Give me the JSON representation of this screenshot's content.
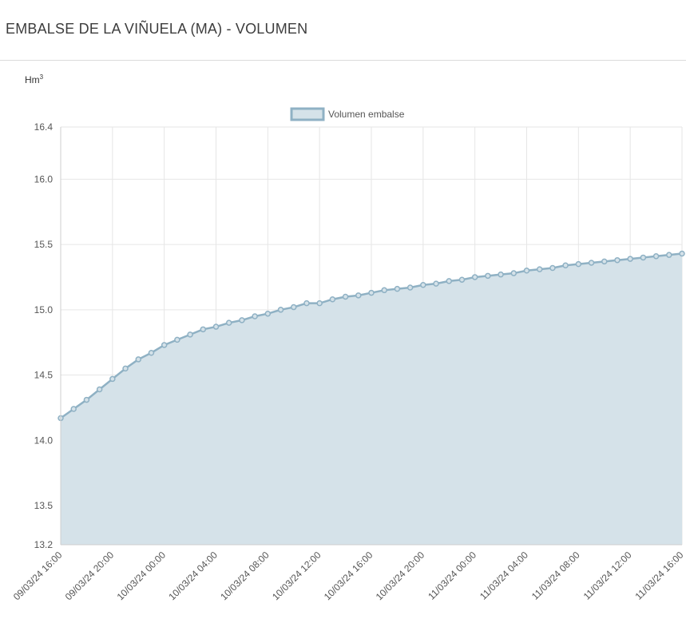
{
  "header": {
    "title": "EMBALSE DE LA VIÑUELA (MA) - VOLUMEN"
  },
  "colors": {
    "line": "#8fb1c4",
    "fill": "#d5e2e9",
    "grid": "#e6e6e6",
    "axis_text": "#555555"
  },
  "chart_data": {
    "type": "area",
    "ylabel": "Hm",
    "ylabel_superscript": "3",
    "ylim": [
      13.2,
      16.4
    ],
    "yticks": [
      "13.2",
      "13.5",
      "14.0",
      "14.5",
      "15.0",
      "15.5",
      "16.0",
      "16.4"
    ],
    "xticks": [
      "09/03/24 16:00",
      "09/03/24 20:00",
      "10/03/24 00:00",
      "10/03/24 04:00",
      "10/03/24 08:00",
      "10/03/24 12:00",
      "10/03/24 16:00",
      "10/03/24 20:00",
      "11/03/24 00:00",
      "11/03/24 04:00",
      "11/03/24 08:00",
      "11/03/24 12:00",
      "11/03/24 16:00"
    ],
    "grid": true,
    "legend_position": "top-center",
    "series": [
      {
        "name": "Volumen embalse",
        "x_start": "09/03/24 16:00",
        "x_step": "1 hour",
        "values": [
          14.17,
          14.24,
          14.31,
          14.39,
          14.47,
          14.55,
          14.62,
          14.67,
          14.73,
          14.77,
          14.81,
          14.85,
          14.87,
          14.9,
          14.92,
          14.95,
          14.97,
          15.0,
          15.02,
          15.05,
          15.05,
          15.08,
          15.1,
          15.11,
          15.13,
          15.15,
          15.16,
          15.17,
          15.19,
          15.2,
          15.22,
          15.23,
          15.25,
          15.26,
          15.27,
          15.28,
          15.3,
          15.31,
          15.32,
          15.34,
          15.35,
          15.36,
          15.37,
          15.38,
          15.39,
          15.4,
          15.41,
          15.42,
          15.43
        ]
      }
    ]
  }
}
